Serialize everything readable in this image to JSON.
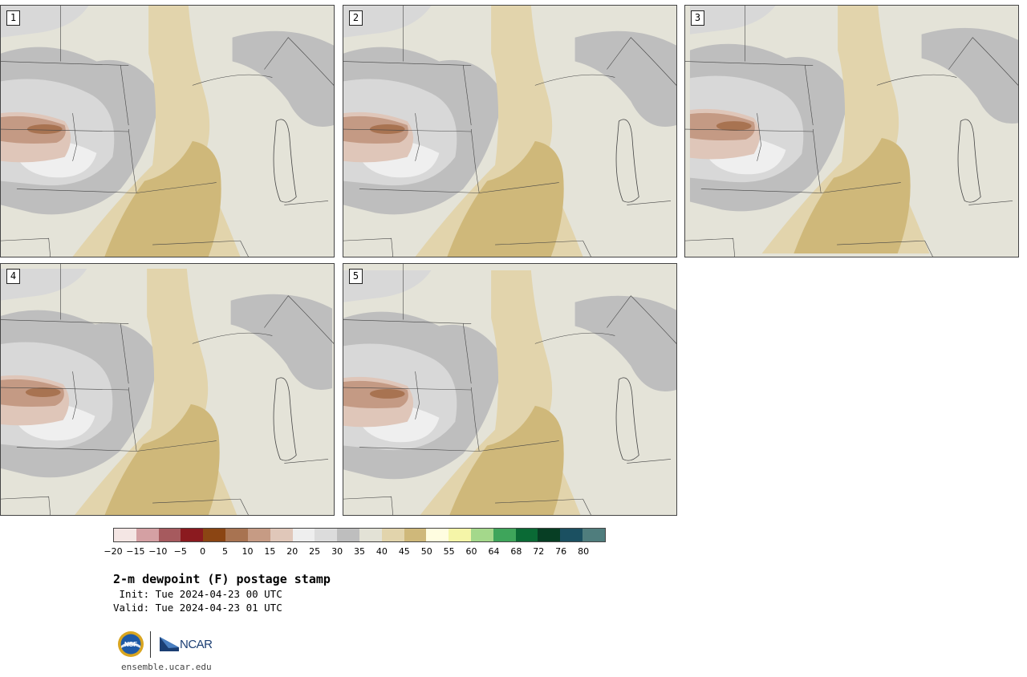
{
  "panels": [
    {
      "label": "1"
    },
    {
      "label": "2"
    },
    {
      "label": "3"
    },
    {
      "label": "4"
    },
    {
      "label": "5"
    }
  ],
  "colorbar": {
    "ticks": [
      "−20",
      "−15",
      "−10",
      "−5",
      "0",
      "5",
      "10",
      "15",
      "20",
      "25",
      "30",
      "35",
      "40",
      "45",
      "50",
      "55",
      "60",
      "64",
      "68",
      "72",
      "76",
      "80"
    ],
    "colors": [
      "#f4e6e4",
      "#d4a0a3",
      "#a65a5e",
      "#8b1a1f",
      "#8b4513",
      "#a87351",
      "#c69b84",
      "#e0c7b9",
      "#eeeeee",
      "#dcdcdc",
      "#bebebe",
      "#e3e2d6",
      "#e2d4ac",
      "#cfb87a",
      "#fffde0",
      "#f5f5a8",
      "#a4d88b",
      "#3ea55b",
      "#0a6a35",
      "#073e24",
      "#1b5061",
      "#4f7d7d"
    ]
  },
  "title": "2-m dewpoint (F) postage stamp",
  "init_line": " Init: Tue 2024-04-23 00 UTC",
  "valid_line": "Valid: Tue 2024-04-23 01 UTC",
  "logo": {
    "nsf": "NSF",
    "ncar": "NCAR"
  },
  "footer_url": "ensemble.ucar.edu",
  "map_colors": {
    "land": "#e4e3d8",
    "dark_gray": "#bebebe",
    "mid_gray": "#d8d8d8",
    "light": "#efefef",
    "tan_light": "#e2d4ac",
    "tan_dark": "#cfb87a",
    "pink_light": "#dfc6b9",
    "brown": "#c49a84",
    "brown_dark": "#a87351",
    "borders": "#444444"
  }
}
